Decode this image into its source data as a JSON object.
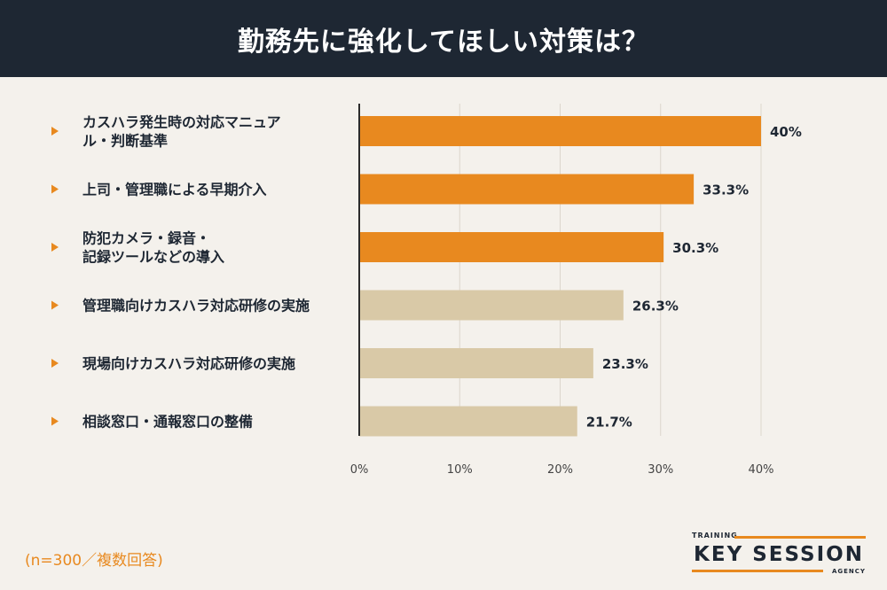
{
  "page": {
    "title": "勤務先に強化してほしい対策は？",
    "note": "(n=300／複数回答)"
  },
  "logo": {
    "top": "TRAINING",
    "main": "KEY SESSION",
    "bottom": "AGENCY"
  },
  "colors": {
    "header_bg": "#1e2733",
    "background": "#f4f1ec",
    "highlight": "#e8891f",
    "muted": "#d9c9a7",
    "text": "#1e2733"
  },
  "chart_data": {
    "type": "bar",
    "orientation": "horizontal",
    "title": "勤務先に強化してほしい対策は？",
    "xlabel": "",
    "ylabel": "",
    "xlim": [
      0,
      40
    ],
    "x_ticks": [
      "0%",
      "10%",
      "20%",
      "30%",
      "40%"
    ],
    "grid": "vertical",
    "categories": [
      [
        "カスハラ発生時の対応マニュア",
        "ル・判断基準"
      ],
      [
        "上司・管理職による早期介入"
      ],
      [
        "防犯カメラ・録音・",
        "記録ツールなどの導入"
      ],
      [
        "管理職向けカスハラ対応研修の実施"
      ],
      [
        "現場向けカスハラ対応研修の実施"
      ],
      [
        "相談窓口・通報窓口の整備"
      ]
    ],
    "values": [
      40,
      33.3,
      30.3,
      26.3,
      23.3,
      21.7
    ],
    "value_labels": [
      "40%",
      "33.3%",
      "30.3%",
      "26.3%",
      "23.3%",
      "21.7%"
    ],
    "highlighted": [
      true,
      true,
      true,
      false,
      false,
      false
    ]
  }
}
